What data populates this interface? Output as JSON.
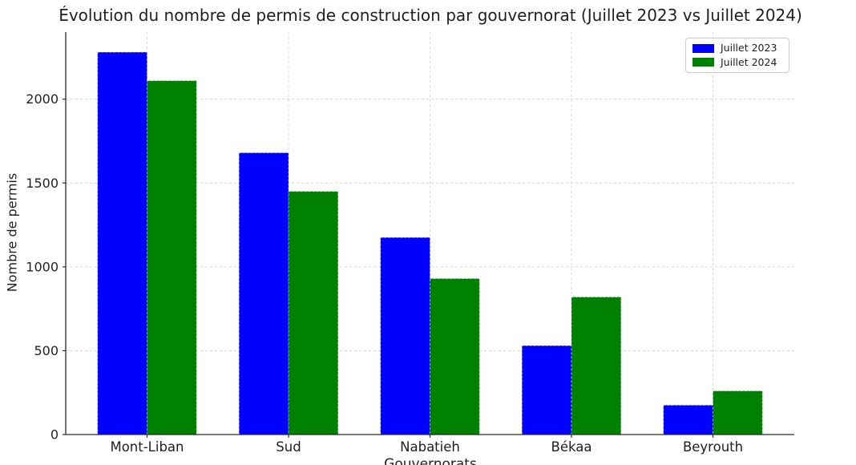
{
  "chart_data": {
    "type": "bar",
    "title": "Évolution du nombre de permis de construction par gouvernorat (Juillet 2023 vs Juillet 2024)",
    "xlabel": "Gouvernorats",
    "ylabel": "Nombre de permis",
    "categories": [
      "Mont-Liban",
      "Sud",
      "Nabatieh",
      "Békaa",
      "Beyrouth"
    ],
    "series": [
      {
        "name": "Juillet 2023",
        "color": "#0000ff",
        "values": [
          2280,
          1680,
          1175,
          530,
          175
        ]
      },
      {
        "name": "Juillet 2024",
        "color": "#008000",
        "values": [
          2110,
          1450,
          930,
          820,
          260
        ]
      }
    ],
    "yticks": [
      0,
      500,
      1000,
      1500,
      2000
    ],
    "ylim": [
      0,
      2400
    ],
    "bar_width": 0.35,
    "grid": true,
    "grid_style": "dashed",
    "legend_position": "upper-right",
    "background": "#ffffff",
    "grid_color": "#d6d6d6",
    "axis_color": "#2b2b2b"
  }
}
